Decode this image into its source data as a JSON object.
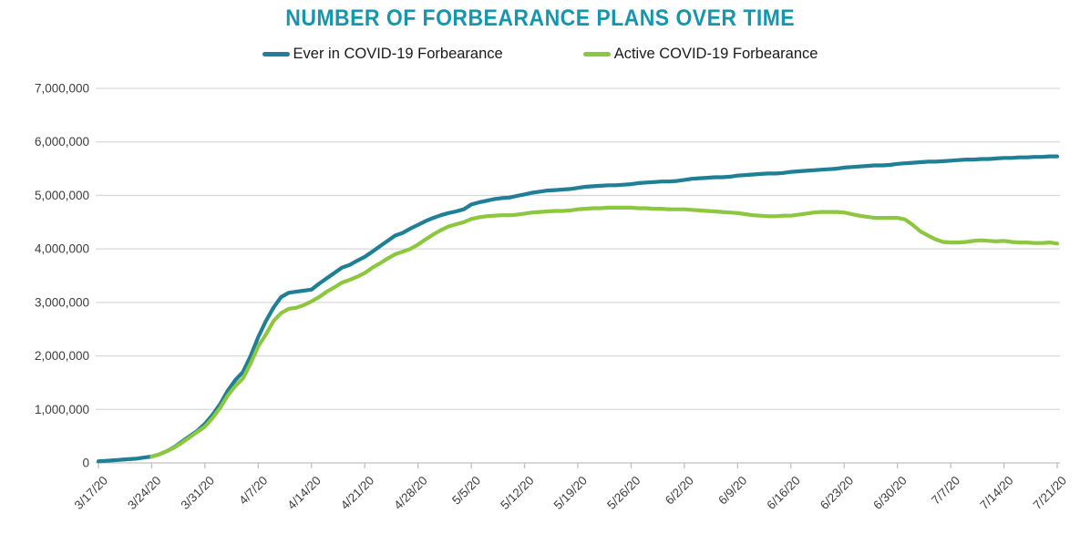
{
  "header": {
    "title": "NUMBER OF FORBEARANCE PLANS OVER TIME",
    "title_color": "#1596ad"
  },
  "legend": [
    {
      "label": "Ever in COVID-19 Forbearance",
      "color": "#1e7f95"
    },
    {
      "label": "Active COVID-19 Forbearance",
      "color": "#8dc63f"
    }
  ],
  "chart_data": {
    "type": "line",
    "title": "NUMBER OF FORBEARANCE PLANS OVER TIME",
    "xlabel": "",
    "ylabel": "",
    "x_unit": "daily dates from 3/17/20 to 7/21/20",
    "x_tick_interval_days": 7,
    "x_tick_labels": [
      "3/17/20",
      "3/24/20",
      "3/31/20",
      "4/7/20",
      "4/14/20",
      "4/21/20",
      "4/28/20",
      "5/5/20",
      "5/12/20",
      "5/19/20",
      "5/26/20",
      "6/2/20",
      "6/9/20",
      "6/16/20",
      "6/23/20",
      "6/30/20",
      "7/7/20",
      "7/14/20",
      "7/21/20"
    ],
    "ylim": [
      0,
      7000000
    ],
    "y_ticks": [
      0,
      1000000,
      2000000,
      3000000,
      4000000,
      5000000,
      6000000,
      7000000
    ],
    "y_tick_labels": [
      "0",
      "1,000,000",
      "2,000,000",
      "3,000,000",
      "4,000,000",
      "5,000,000",
      "6,000,000",
      "7,000,000"
    ],
    "grid": "horizontal-only",
    "grid_color": "#d9d9d9",
    "axis_color": "#c0c0c0",
    "tick_label_color": "#3d3d3d",
    "legend_position": "top-center",
    "series": [
      {
        "name": "Ever in COVID-19 Forbearance",
        "color": "#1e7f95",
        "values": [
          30000,
          40000,
          50000,
          60000,
          70000,
          80000,
          100000,
          120000,
          160000,
          220000,
          300000,
          400000,
          500000,
          600000,
          730000,
          900000,
          1100000,
          1350000,
          1550000,
          1700000,
          2000000,
          2350000,
          2650000,
          2900000,
          3100000,
          3180000,
          3200000,
          3220000,
          3240000,
          3350000,
          3450000,
          3550000,
          3650000,
          3700000,
          3780000,
          3850000,
          3950000,
          4050000,
          4150000,
          4250000,
          4300000,
          4380000,
          4450000,
          4520000,
          4580000,
          4630000,
          4670000,
          4700000,
          4740000,
          4830000,
          4870000,
          4900000,
          4930000,
          4950000,
          4960000,
          4990000,
          5020000,
          5050000,
          5070000,
          5090000,
          5100000,
          5110000,
          5120000,
          5140000,
          5160000,
          5170000,
          5180000,
          5190000,
          5190000,
          5200000,
          5210000,
          5230000,
          5240000,
          5250000,
          5260000,
          5260000,
          5270000,
          5290000,
          5310000,
          5320000,
          5330000,
          5340000,
          5340000,
          5350000,
          5370000,
          5380000,
          5390000,
          5400000,
          5410000,
          5410000,
          5420000,
          5440000,
          5450000,
          5460000,
          5470000,
          5480000,
          5490000,
          5500000,
          5520000,
          5530000,
          5540000,
          5550000,
          5560000,
          5560000,
          5570000,
          5590000,
          5600000,
          5610000,
          5620000,
          5630000,
          5630000,
          5640000,
          5650000,
          5660000,
          5670000,
          5670000,
          5680000,
          5680000,
          5690000,
          5700000,
          5700000,
          5710000,
          5710000,
          5720000,
          5720000,
          5730000,
          5730000
        ]
      },
      {
        "name": "Active COVID-19 Forbearance",
        "color": "#8dc63f",
        "values": [
          null,
          null,
          null,
          null,
          null,
          null,
          null,
          120000,
          160000,
          220000,
          290000,
          380000,
          480000,
          580000,
          680000,
          840000,
          1030000,
          1260000,
          1440000,
          1580000,
          1860000,
          2180000,
          2400000,
          2650000,
          2800000,
          2880000,
          2900000,
          2950000,
          3020000,
          3100000,
          3200000,
          3280000,
          3370000,
          3420000,
          3480000,
          3550000,
          3650000,
          3730000,
          3820000,
          3900000,
          3950000,
          4000000,
          4080000,
          4180000,
          4270000,
          4350000,
          4420000,
          4460000,
          4500000,
          4560000,
          4590000,
          4610000,
          4620000,
          4630000,
          4630000,
          4640000,
          4660000,
          4680000,
          4690000,
          4700000,
          4710000,
          4710000,
          4720000,
          4740000,
          4750000,
          4760000,
          4760000,
          4770000,
          4770000,
          4770000,
          4770000,
          4760000,
          4760000,
          4750000,
          4750000,
          4740000,
          4740000,
          4740000,
          4730000,
          4720000,
          4710000,
          4700000,
          4690000,
          4680000,
          4670000,
          4650000,
          4630000,
          4620000,
          4610000,
          4610000,
          4620000,
          4620000,
          4640000,
          4660000,
          4680000,
          4690000,
          4690000,
          4690000,
          4680000,
          4650000,
          4620000,
          4600000,
          4580000,
          4580000,
          4580000,
          4580000,
          4550000,
          4450000,
          4330000,
          4250000,
          4180000,
          4130000,
          4120000,
          4120000,
          4130000,
          4150000,
          4160000,
          4150000,
          4140000,
          4150000,
          4130000,
          4120000,
          4120000,
          4110000,
          4110000,
          4120000,
          4100000
        ]
      }
    ]
  }
}
